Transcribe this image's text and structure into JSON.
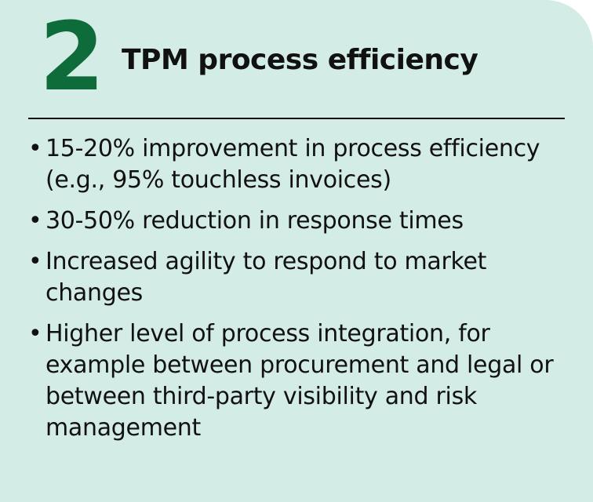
{
  "card": {
    "number": "2",
    "title": "TPM process efficiency",
    "bullets": [
      "15-20% improvement in process efficiency (e.g., 95% touchless invoices)",
      "30-50% reduction in response times",
      "Increased agility to respond to market changes",
      "Higher level of process integration, for example between procurement and legal or between third-party visibility and risk management"
    ]
  }
}
